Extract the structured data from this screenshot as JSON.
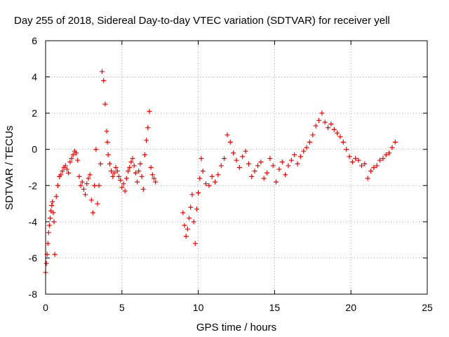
{
  "chart_data": {
    "type": "scatter",
    "title": "Day 255 of 2018, Sidereal Day-to-day VTEC variation (SDTVAR) for receiver yell",
    "xlabel": "GPS time / hours",
    "ylabel": "SDTVAR / TECUs",
    "xlim": [
      0,
      25
    ],
    "ylim": [
      -8,
      6
    ],
    "xticks": [
      0,
      5,
      10,
      15,
      20,
      25
    ],
    "yticks": [
      -8,
      -6,
      -4,
      -2,
      0,
      2,
      4,
      6
    ],
    "grid": true,
    "marker": "+",
    "series": [
      {
        "name": "SDTVAR",
        "color": "#ff0000",
        "x": [
          0.0,
          0.05,
          0.1,
          0.15,
          0.2,
          0.25,
          0.3,
          0.35,
          0.4,
          0.45,
          0.5,
          0.55,
          0.6,
          0.7,
          0.8,
          0.9,
          1.0,
          1.1,
          1.2,
          1.3,
          1.4,
          1.5,
          1.6,
          1.7,
          1.8,
          1.9,
          2.0,
          2.1,
          2.2,
          2.3,
          2.4,
          2.5,
          2.6,
          2.7,
          2.8,
          2.9,
          3.0,
          3.1,
          3.2,
          3.3,
          3.4,
          3.5,
          3.6,
          3.7,
          3.8,
          3.9,
          4.0,
          4.05,
          4.1,
          4.2,
          4.3,
          4.4,
          4.5,
          4.6,
          4.7,
          4.8,
          4.9,
          5.0,
          5.1,
          5.2,
          5.3,
          5.4,
          5.5,
          5.6,
          5.7,
          5.8,
          5.9,
          6.0,
          6.1,
          6.2,
          6.3,
          6.4,
          6.5,
          6.6,
          6.7,
          6.8,
          6.9,
          7.0,
          7.1,
          7.2,
          9.0,
          9.1,
          9.2,
          9.3,
          9.4,
          9.5,
          9.6,
          9.7,
          9.8,
          9.9,
          10.0,
          10.1,
          10.2,
          10.3,
          10.5,
          10.7,
          10.9,
          11.1,
          11.3,
          11.5,
          11.7,
          11.9,
          12.1,
          12.3,
          12.5,
          12.7,
          12.9,
          13.1,
          13.3,
          13.5,
          13.7,
          13.9,
          14.1,
          14.3,
          14.5,
          14.7,
          14.9,
          15.1,
          15.3,
          15.5,
          15.7,
          15.9,
          16.1,
          16.3,
          16.5,
          16.7,
          16.9,
          17.1,
          17.3,
          17.5,
          17.7,
          17.9,
          18.1,
          18.3,
          18.5,
          18.7,
          18.9,
          19.1,
          19.3,
          19.5,
          19.7,
          19.9,
          20.1,
          20.3,
          20.5,
          20.7,
          20.9,
          21.1,
          21.3,
          21.5,
          21.7,
          21.9,
          22.1,
          22.3,
          22.5,
          22.7,
          22.9
        ],
        "y": [
          -6.8,
          -6.3,
          -5.8,
          -5.2,
          -4.6,
          -4.2,
          -3.8,
          -3.4,
          -3.1,
          -2.9,
          -3.5,
          -4.0,
          -5.8,
          -2.6,
          -2.0,
          -1.5,
          -1.4,
          -1.2,
          -1.0,
          -0.9,
          -1.1,
          -1.3,
          -0.7,
          -0.5,
          -0.3,
          -0.1,
          -0.2,
          -0.6,
          -1.5,
          -2.0,
          -1.8,
          -2.2,
          -2.5,
          -1.9,
          -1.6,
          -1.4,
          -2.8,
          -3.5,
          -2.0,
          0.0,
          -3.0,
          -2.0,
          -0.8,
          4.3,
          3.8,
          2.5,
          1.0,
          0.4,
          -0.3,
          -0.8,
          -1.2,
          -1.5,
          -1.3,
          -1.0,
          -1.2,
          -1.5,
          -1.7,
          -2.1,
          -1.9,
          -2.3,
          -1.6,
          -1.2,
          -1.0,
          -0.7,
          -0.5,
          -0.9,
          -1.3,
          -1.8,
          -1.2,
          -0.8,
          -1.5,
          -2.2,
          -0.3,
          0.5,
          1.2,
          2.1,
          -1.0,
          -1.4,
          -1.6,
          -1.8,
          -3.5,
          -4.2,
          -4.8,
          -4.4,
          -3.8,
          -3.2,
          -2.5,
          -4.0,
          -5.2,
          -3.3,
          -2.4,
          -1.6,
          -0.5,
          -1.2,
          -1.9,
          -2.0,
          -1.5,
          -1.8,
          -1.4,
          -0.9,
          -0.5,
          0.8,
          0.4,
          -0.2,
          -0.6,
          -1.0,
          -0.4,
          -0.1,
          -0.8,
          -1.5,
          -1.2,
          -0.9,
          -0.7,
          -1.6,
          -1.3,
          -0.5,
          -0.9,
          -1.8,
          -1.1,
          -0.7,
          -1.4,
          -0.9,
          -0.6,
          -0.3,
          -0.8,
          -0.4,
          -0.1,
          0.1,
          0.4,
          0.8,
          1.3,
          1.6,
          2.0,
          1.5,
          1.2,
          1.4,
          1.1,
          0.9,
          0.7,
          0.4,
          0.0,
          -0.4,
          -0.7,
          -0.5,
          -0.6,
          -0.9,
          -0.8,
          -1.6,
          -1.2,
          -1.0,
          -0.9,
          -0.6,
          -0.5,
          -0.3,
          -0.2,
          0.1,
          0.4
        ]
      }
    ]
  }
}
